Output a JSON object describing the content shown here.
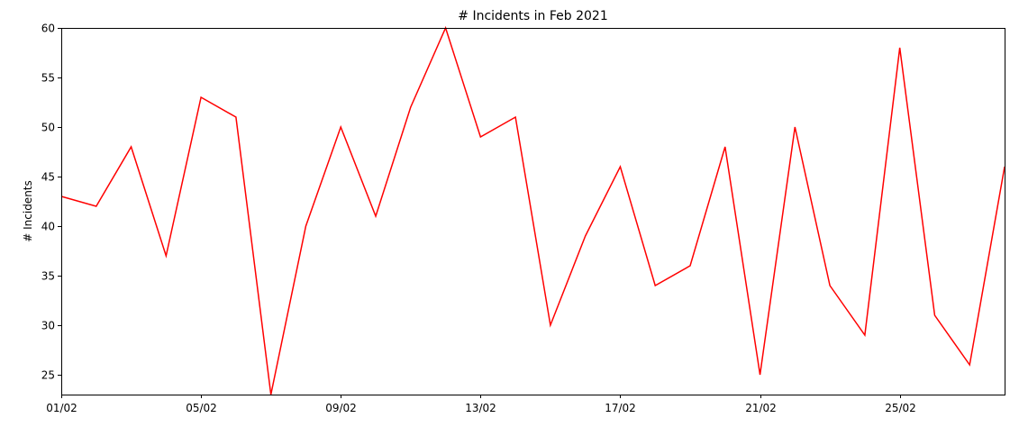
{
  "chart_data": {
    "type": "line",
    "title": "# Incidents in Feb 2021",
    "xlabel": "",
    "ylabel": "# Incidents",
    "x": [
      "01/02",
      "02/02",
      "03/02",
      "04/02",
      "05/02",
      "06/02",
      "07/02",
      "08/02",
      "09/02",
      "10/02",
      "11/02",
      "12/02",
      "13/02",
      "14/02",
      "15/02",
      "16/02",
      "17/02",
      "18/02",
      "19/02",
      "20/02",
      "21/02",
      "22/02",
      "23/02",
      "24/02",
      "25/02",
      "26/02",
      "27/02",
      "28/02"
    ],
    "series": [
      {
        "values": [
          43,
          42,
          48,
          37,
          53,
          51,
          23,
          40,
          50,
          41,
          52,
          60,
          49,
          51,
          30,
          39,
          46,
          34,
          36,
          48,
          25,
          50,
          34,
          29,
          58,
          31,
          26,
          46
        ],
        "color": "#ff0000"
      }
    ],
    "xticks": [
      "01/02",
      "05/02",
      "09/02",
      "13/02",
      "17/02",
      "21/02",
      "25/02"
    ],
    "yticks": [
      25,
      30,
      35,
      40,
      45,
      50,
      55,
      60
    ],
    "ylim": [
      23,
      60
    ],
    "grid": false,
    "legend": false
  }
}
